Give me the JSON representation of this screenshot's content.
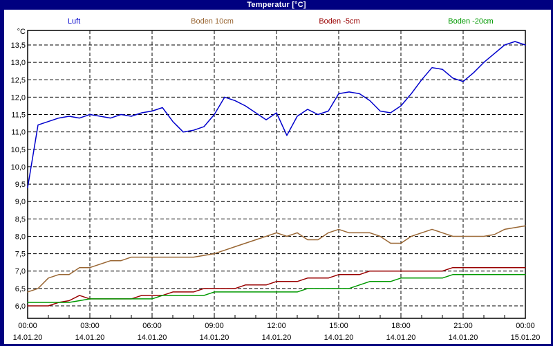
{
  "window": {
    "title": "Temperatur [°C]"
  },
  "colors": {
    "titlebar": "#000080",
    "window_border": "#000080",
    "background": "#ffffff",
    "plot_frame": "#000000",
    "grid": "#000000"
  },
  "legend": {
    "items": [
      {
        "label": "Luft",
        "color": "#0000cc"
      },
      {
        "label": "Boden 10cm",
        "color": "#996633"
      },
      {
        "label": "Boden -5cm",
        "color": "#990000"
      },
      {
        "label": "Boden -20cm",
        "color": "#009900"
      }
    ]
  },
  "axis": {
    "unit_label": "°C"
  },
  "chart_data": {
    "type": "line",
    "title": "Temperatur [°C]",
    "ylabel": "°C",
    "ylim": [
      6.0,
      13.5
    ],
    "y_step": 0.5,
    "decimal_separator": ",",
    "grid": "dashed",
    "x_unit": "hours",
    "x_interval_hours": 0.5,
    "x_range_hours": [
      0,
      24
    ],
    "x_ticks": [
      {
        "hour": 0,
        "time": "00:00",
        "date": "14.01.20"
      },
      {
        "hour": 3,
        "time": "03:00",
        "date": "14.01.20"
      },
      {
        "hour": 6,
        "time": "06:00",
        "date": "14.01.20"
      },
      {
        "hour": 9,
        "time": "09:00",
        "date": "14.01.20"
      },
      {
        "hour": 12,
        "time": "12:00",
        "date": "14.01.20"
      },
      {
        "hour": 15,
        "time": "15:00",
        "date": "14.01.20"
      },
      {
        "hour": 18,
        "time": "18:00",
        "date": "14.01.20"
      },
      {
        "hour": 21,
        "time": "21:00",
        "date": "14.01.20"
      },
      {
        "hour": 24,
        "time": "00:00",
        "date": "15.01.20"
      }
    ],
    "series": [
      {
        "name": "Luft",
        "color": "#0000cc",
        "values": [
          9.4,
          11.2,
          11.3,
          11.4,
          11.45,
          11.4,
          11.5,
          11.45,
          11.4,
          11.5,
          11.45,
          11.55,
          11.6,
          11.7,
          11.3,
          11.0,
          11.05,
          11.15,
          11.5,
          12.0,
          11.9,
          11.75,
          11.55,
          11.35,
          11.55,
          10.9,
          11.45,
          11.65,
          11.5,
          11.6,
          12.1,
          12.15,
          12.1,
          11.9,
          11.6,
          11.55,
          11.75,
          12.1,
          12.5,
          12.85,
          12.8,
          12.55,
          12.45,
          12.7,
          13.0,
          13.25,
          13.5,
          13.6,
          13.5
        ]
      },
      {
        "name": "Boden 10cm",
        "color": "#996633",
        "values": [
          6.4,
          6.5,
          6.8,
          6.9,
          6.9,
          7.1,
          7.1,
          7.2,
          7.3,
          7.3,
          7.4,
          7.4,
          7.4,
          7.4,
          7.4,
          7.4,
          7.4,
          7.45,
          7.5,
          7.6,
          7.7,
          7.8,
          7.9,
          8.0,
          8.1,
          8.0,
          8.1,
          7.9,
          7.9,
          8.1,
          8.2,
          8.1,
          8.1,
          8.1,
          8.0,
          7.8,
          7.8,
          8.0,
          8.1,
          8.2,
          8.1,
          8.0,
          8.0,
          8.0,
          8.0,
          8.05,
          8.2,
          8.25,
          8.3
        ]
      },
      {
        "name": "Boden -5cm",
        "color": "#990000",
        "values": [
          6.0,
          6.0,
          6.0,
          6.1,
          6.15,
          6.3,
          6.2,
          6.2,
          6.2,
          6.2,
          6.2,
          6.3,
          6.3,
          6.3,
          6.4,
          6.4,
          6.4,
          6.5,
          6.5,
          6.5,
          6.5,
          6.6,
          6.6,
          6.6,
          6.7,
          6.7,
          6.7,
          6.8,
          6.8,
          6.8,
          6.9,
          6.9,
          6.9,
          7.0,
          7.0,
          7.0,
          7.0,
          7.0,
          7.0,
          7.0,
          7.0,
          7.1,
          7.1,
          7.1,
          7.1,
          7.1,
          7.1,
          7.1,
          7.1
        ]
      },
      {
        "name": "Boden -20cm",
        "color": "#009900",
        "values": [
          6.1,
          6.1,
          6.1,
          6.1,
          6.1,
          6.15,
          6.2,
          6.2,
          6.2,
          6.2,
          6.2,
          6.2,
          6.2,
          6.3,
          6.3,
          6.3,
          6.3,
          6.3,
          6.4,
          6.4,
          6.4,
          6.4,
          6.4,
          6.4,
          6.4,
          6.4,
          6.4,
          6.5,
          6.5,
          6.5,
          6.5,
          6.5,
          6.6,
          6.7,
          6.7,
          6.7,
          6.8,
          6.8,
          6.8,
          6.8,
          6.8,
          6.9,
          6.9,
          6.9,
          6.9,
          6.9,
          6.9,
          6.9,
          6.9
        ]
      }
    ]
  }
}
